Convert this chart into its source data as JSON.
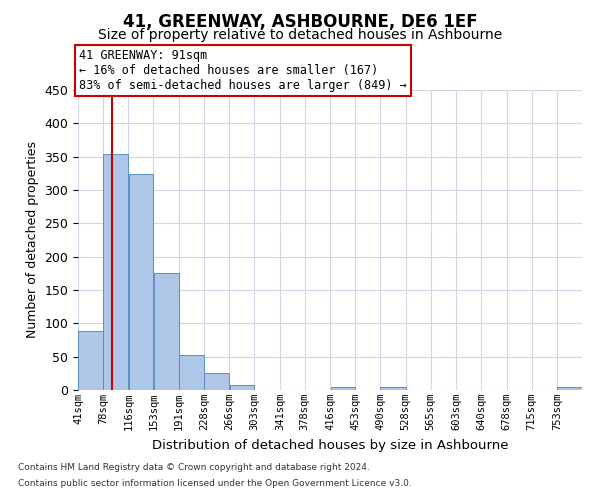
{
  "title": "41, GREENWAY, ASHBOURNE, DE6 1EF",
  "subtitle": "Size of property relative to detached houses in Ashbourne",
  "xlabel": "Distribution of detached houses by size in Ashbourne",
  "ylabel": "Number of detached properties",
  "footer_line1": "Contains HM Land Registry data © Crown copyright and database right 2024.",
  "footer_line2": "Contains public sector information licensed under the Open Government Licence v3.0.",
  "bar_edges": [
    41,
    78,
    116,
    153,
    191,
    228,
    266,
    303,
    341,
    378,
    416,
    453,
    490,
    528,
    565,
    603,
    640,
    678,
    715,
    753,
    790
  ],
  "bar_heights": [
    88,
    354,
    324,
    175,
    53,
    25,
    8,
    0,
    0,
    0,
    4,
    0,
    5,
    0,
    0,
    0,
    0,
    0,
    0,
    4
  ],
  "bar_color": "#aec6e8",
  "bar_edge_color": "#5a8fc2",
  "property_sqm": 91,
  "annotation_line1": "41 GREENWAY: 91sqm",
  "annotation_line2": "← 16% of detached houses are smaller (167)",
  "annotation_line3": "83% of semi-detached houses are larger (849) →",
  "annotation_box_color": "#ffffff",
  "annotation_box_edge_color": "#cc0000",
  "red_line_color": "#cc0000",
  "ylim": [
    0,
    450
  ],
  "yticks": [
    0,
    50,
    100,
    150,
    200,
    250,
    300,
    350,
    400,
    450
  ],
  "background_color": "#ffffff",
  "grid_color": "#d0d8e8",
  "title_fontsize": 12,
  "subtitle_fontsize": 10,
  "tick_label_fontsize": 7.5,
  "ylabel_fontsize": 9,
  "xlabel_fontsize": 9.5,
  "annotation_fontsize": 8.5
}
